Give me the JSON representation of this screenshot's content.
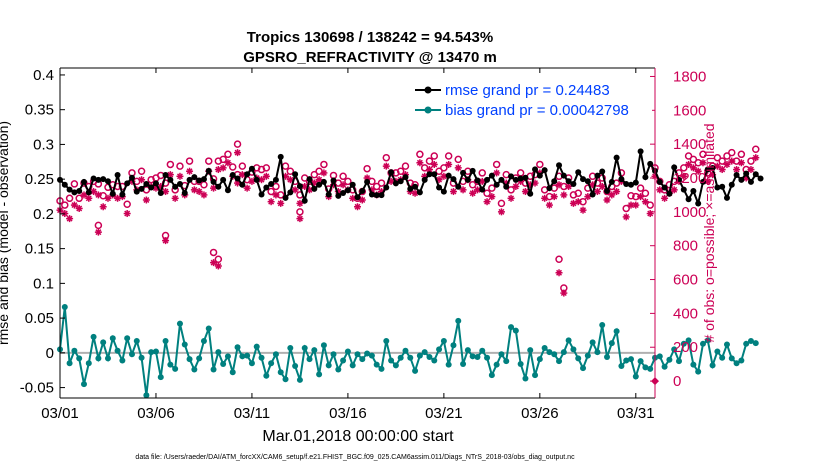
{
  "chart_data": {
    "type": "line",
    "title_line1": "Tropics 130698 / 138242 = 94.543%",
    "title_line2": "GPSRO_REFRACTIVITY @ 13470 m",
    "xlabel": "Mar.01,2018 00:00:00 start",
    "ylabel": "rmse and bias (model - observation)",
    "ylabel2": "# of obs: o=possible; ×=assimilated",
    "footnote": "data file: /Users/raeder/DAI/ATM_forcXX/CAM6_setup/f.e21.FHIST_BGC.f09_025.CAM6assim.011/Diags_NTrS_2018-03/obs_diag_output.nc",
    "xlim": [
      0,
      31
    ],
    "ylim": [
      -0.065,
      0.41
    ],
    "y2lim": [
      -100,
      1850
    ],
    "x_ticks": [
      0,
      5,
      10,
      15,
      20,
      25,
      30
    ],
    "x_tick_labels": [
      "03/01",
      "03/06",
      "03/11",
      "03/16",
      "03/21",
      "03/26",
      "03/31"
    ],
    "y_ticks": [
      -0.05,
      0,
      0.05,
      0.1,
      0.15,
      0.2,
      0.25,
      0.3,
      0.35,
      0.4
    ],
    "y_tick_labels": [
      "-0.05",
      "0",
      "0.05",
      "0.1",
      "0.15",
      "0.2",
      "0.25",
      "0.3",
      "0.35",
      "0.4"
    ],
    "y2_ticks": [
      0,
      200,
      400,
      600,
      800,
      1000,
      1200,
      1400,
      1600,
      1800
    ],
    "y2_tick_labels": [
      "0",
      "200",
      "400",
      "600",
      "800",
      "1000",
      "1200",
      "1400",
      "1600",
      "1800"
    ],
    "step_days": 0.25,
    "zero_line": 0,
    "colors": {
      "rmse": "#000000",
      "bias": "#00807f",
      "obs": "#cc0055",
      "zero": "#b0b0b0",
      "legend_text": "#0040ff"
    },
    "series": [
      {
        "name": "rmse grand pr = 0.24483",
        "axis": "left",
        "values": [
          0.249,
          0.242,
          0.235,
          0.231,
          0.233,
          0.246,
          0.231,
          0.251,
          0.249,
          0.25,
          0.247,
          0.229,
          0.256,
          0.228,
          0.244,
          0.252,
          0.232,
          0.236,
          0.243,
          0.238,
          0.244,
          0.23,
          0.256,
          0.249,
          0.239,
          0.243,
          0.23,
          0.249,
          0.253,
          0.248,
          0.25,
          0.262,
          0.246,
          0.239,
          0.249,
          0.234,
          0.256,
          0.251,
          0.242,
          0.257,
          0.265,
          0.249,
          0.228,
          0.238,
          0.243,
          0.249,
          0.282,
          0.223,
          0.231,
          0.257,
          0.24,
          0.219,
          0.25,
          0.236,
          0.242,
          0.246,
          0.228,
          0.248,
          0.226,
          0.23,
          0.234,
          0.242,
          0.224,
          0.233,
          0.246,
          0.228,
          0.227,
          0.227,
          0.238,
          0.26,
          0.244,
          0.247,
          0.253,
          0.236,
          0.239,
          0.231,
          0.249,
          0.257,
          0.257,
          0.238,
          0.232,
          0.255,
          0.25,
          0.239,
          0.259,
          0.249,
          0.262,
          0.248,
          0.235,
          0.249,
          0.255,
          0.242,
          0.249,
          0.239,
          0.254,
          0.249,
          0.251,
          0.252,
          0.229,
          0.264,
          0.255,
          0.263,
          0.237,
          0.247,
          0.27,
          0.255,
          0.247,
          0.243,
          0.26,
          0.25,
          0.247,
          0.228,
          0.255,
          0.261,
          0.233,
          0.246,
          0.281,
          0.25,
          0.243,
          0.242,
          0.245,
          0.29,
          0.253,
          0.272,
          0.262,
          0.246,
          0.238,
          0.229,
          0.267,
          0.249,
          0.235,
          0.221,
          0.233,
          0.215,
          0.246,
          0.264,
          0.266,
          0.238,
          0.239,
          0.223,
          0.242,
          0.256,
          0.249,
          0.258,
          0.246,
          0.257,
          0.251
        ]
      },
      {
        "name": "bias grand pr = 0.00042798",
        "axis": "left",
        "values": [
          0.005,
          0.066,
          -0.015,
          0.003,
          -0.008,
          -0.045,
          -0.015,
          0.023,
          -0.008,
          0.015,
          -0.008,
          0.021,
          0.003,
          -0.011,
          0.021,
          -0.002,
          0.017,
          -0.007,
          -0.061,
          0.001,
          0.002,
          -0.035,
          0.017,
          -0.017,
          -0.023,
          0.042,
          0.012,
          -0.009,
          -0.024,
          -0.008,
          0.017,
          0.035,
          -0.024,
          0.001,
          -0.016,
          -0.005,
          -0.028,
          0.008,
          -0.005,
          -0.004,
          -0.015,
          0.009,
          -0.007,
          -0.033,
          -0.015,
          -0.002,
          -0.028,
          -0.038,
          0.007,
          -0.019,
          -0.039,
          0.007,
          -0.009,
          0.004,
          -0.031,
          0.011,
          -0.018,
          -0.002,
          -0.024,
          -0.011,
          0.002,
          -0.018,
          -0.002,
          -0.009,
          -0.001,
          -0.004,
          -0.017,
          -0.023,
          0.017,
          -0.011,
          -0.018,
          -0.007,
          0.003,
          -0.007,
          -0.026,
          -0.004,
          0.001,
          -0.006,
          -0.011,
          0.005,
          0.017,
          -0.017,
          0.011,
          0.046,
          -0.016,
          0.004,
          -0.005,
          -0.006,
          0.003,
          -0.007,
          -0.032,
          -0.017,
          -0.002,
          -0.012,
          0.037,
          0.032,
          -0.016,
          -0.037,
          0.004,
          -0.032,
          -0.009,
          0.007,
          0.001,
          -0.002,
          -0.012,
          0.001,
          0.018,
          0.005,
          -0.008,
          -0.022,
          -0.004,
          0.015,
          0.001,
          0.04,
          -0.006,
          0.014,
          0.031,
          -0.019,
          -0.011,
          -0.009,
          -0.034,
          -0.012,
          -0.021,
          -0.023,
          -0.007,
          -0.005,
          -0.02,
          -0.01,
          0.005,
          -0.012,
          0.013,
          0.018,
          -0.017,
          -0.027,
          0.013,
          0.018,
          -0.018,
          0.002,
          -0.007,
          0.012,
          -0.008,
          -0.015,
          -0.011,
          0.013,
          0.017,
          0.014
        ]
      },
      {
        "name": "obs possible",
        "axis": "right",
        "marker": "o",
        "values": [
          1065,
          1040,
          1080,
          1165,
          1080,
          1170,
          1150,
          1180,
          1165,
          1095,
          1145,
          1160,
          1150,
          1150,
          1045,
          1230,
          1180,
          1240,
          1130,
          1190,
          1200,
          1215,
          1170,
          1280,
          1130,
          1270,
          1155,
          1300,
          1180,
          1180,
          1160,
          1300,
          1195,
          1300,
          1310,
          1340,
          1265,
          1220,
          1270,
          1190,
          1235,
          1260,
          1250,
          1260,
          1120,
          1150,
          1100,
          1270,
          1240,
          1180,
          1100,
          1200,
          1180,
          1220,
          1240,
          1280,
          1135,
          1215,
          1170,
          1210,
          1180,
          1130,
          1080,
          1120,
          1255,
          1180,
          1150,
          1170,
          1320,
          1230,
          1230,
          1240,
          1270,
          1170,
          1160,
          1340,
          1260,
          1300,
          1330,
          1240,
          1260,
          1330,
          1170,
          1310,
          1180,
          1240,
          1160,
          1180,
          1230,
          1110,
          1140,
          1280,
          1050,
          1220,
          1130,
          1200,
          1230,
          1170,
          1210,
          1220,
          1280,
          1130,
          1090,
          1140,
          1210,
          1150,
          1200,
          1100,
          1110,
          1060,
          1140,
          1210,
          1170,
          1200,
          1120,
          1150,
          1170,
          1230,
          1020,
          1095,
          1090,
          1140,
          1110,
          1040,
          1260,
          1180,
          1130,
          1160,
          1180,
          1230,
          1260,
          1330,
          1310,
          1290,
          1340,
          1230,
          1270,
          1320,
          1300,
          1330,
          1350,
          1300,
          1340,
          1250,
          1300,
          1370
        ]
      },
      {
        "name": "obs assimilated",
        "axis": "right",
        "marker": "x",
        "values": [
          1010,
          990,
          960,
          1040,
          1020,
          1100,
          1080,
          1120,
          1100,
          1030,
          1080,
          1100,
          1080,
          1090,
          990,
          1180,
          1130,
          1190,
          1070,
          1150,
          1140,
          1150,
          1120,
          1220,
          1080,
          1210,
          1100,
          1240,
          1130,
          1120,
          1100,
          1240,
          1140,
          1250,
          1260,
          1290,
          1210,
          1170,
          1220,
          1140,
          1180,
          1200,
          1190,
          1210,
          1060,
          1100,
          1050,
          1210,
          1190,
          1130,
          1050,
          1150,
          1130,
          1170,
          1190,
          1230,
          1090,
          1160,
          1120,
          1160,
          1130,
          1080,
          1030,
          1070,
          1200,
          1130,
          1100,
          1120,
          1270,
          1180,
          1180,
          1190,
          1220,
          1120,
          1110,
          1290,
          1210,
          1250,
          1280,
          1190,
          1210,
          1280,
          1120,
          1260,
          1130,
          1190,
          1110,
          1130,
          1180,
          1060,
          1090,
          1230,
          1000,
          1170,
          1080,
          1150,
          1180,
          1120,
          1160,
          1170,
          1230,
          1080,
          1040,
          1090,
          1160,
          1100,
          1150,
          1050,
          1060,
          1010,
          1090,
          1160,
          1120,
          1150,
          1070,
          1100,
          1120,
          1180,
          970,
          1040,
          1040,
          1090,
          1060,
          990,
          1210,
          1130,
          1080,
          1110,
          1130,
          1180,
          1210,
          1280,
          1260,
          1240,
          1290,
          1180,
          1220,
          1270,
          1250,
          1280,
          1300,
          1250,
          1290,
          1200,
          1250,
          1320
        ]
      }
    ],
    "obs_extra_points": [
      {
        "x": 8.0,
        "possible": 760,
        "assimilated": 700
      },
      {
        "x": 8.25,
        "possible": 720,
        "assimilated": 680
      },
      {
        "x": 26.0,
        "possible": 720,
        "assimilated": 640
      },
      {
        "x": 26.25,
        "possible": 550,
        "assimilated": 520
      },
      {
        "x": 12.5,
        "possible": 1000,
        "assimilated": 960
      },
      {
        "x": 2.0,
        "possible": 920,
        "assimilated": 880
      },
      {
        "x": 5.5,
        "possible": 860,
        "assimilated": 830
      },
      {
        "x": 9.25,
        "possible": 1400,
        "assimilated": 1350
      }
    ],
    "end_marker": {
      "x": 31.0,
      "value": 0
    }
  }
}
